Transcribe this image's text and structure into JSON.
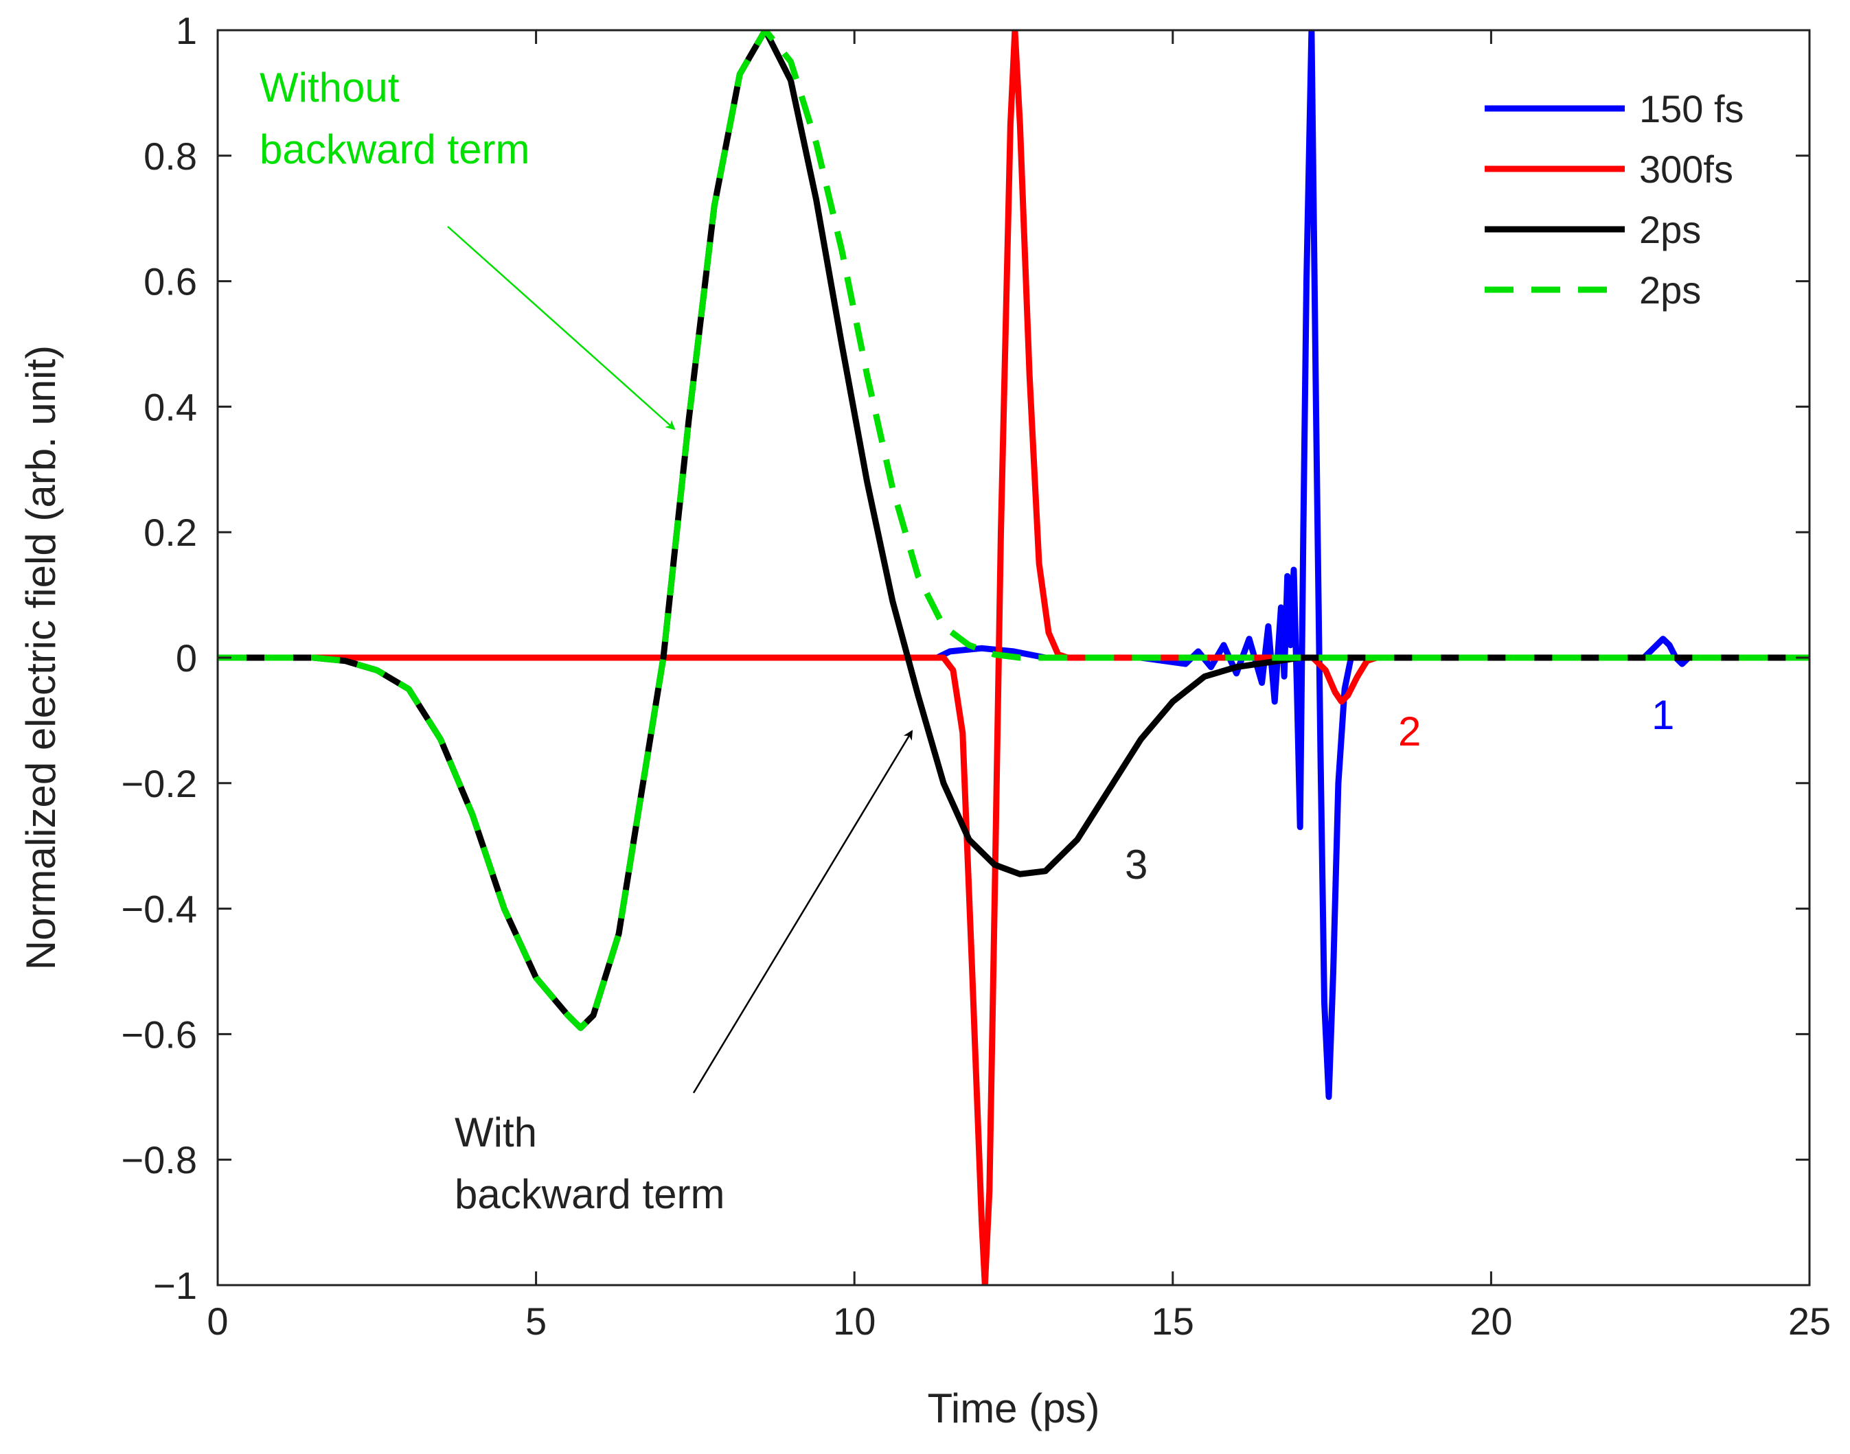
{
  "chart_data": {
    "type": "line",
    "title": "",
    "xlabel": "Time (ps)",
    "ylabel": "Normalized electric field (arb. unit)",
    "xlim": [
      0,
      25
    ],
    "ylim": [
      -1,
      1
    ],
    "xticks": [
      0,
      5,
      10,
      15,
      20,
      25
    ],
    "yticks": [
      -1,
      -0.8,
      -0.6,
      -0.4,
      -0.2,
      0,
      0.2,
      0.4,
      0.6,
      0.8,
      1
    ],
    "xtick_labels": [
      "0",
      "5",
      "10",
      "15",
      "20",
      "25"
    ],
    "ytick_labels": [
      "−1",
      "−0.8",
      "−0.6",
      "−0.4",
      "−0.2",
      "0",
      "0.2",
      "0.4",
      "0.6",
      "0.8",
      "1"
    ],
    "grid": false,
    "legend_position": "top-right",
    "series": [
      {
        "name": "150 fs",
        "color": "#0000ff",
        "style": "solid",
        "points": [
          [
            0,
            0
          ],
          [
            11.3,
            0
          ],
          [
            11.4,
            0.005
          ],
          [
            11.5,
            0.01
          ],
          [
            12,
            0.015
          ],
          [
            12.5,
            0.01
          ],
          [
            13,
            0.0
          ],
          [
            14.5,
            0
          ],
          [
            15.2,
            -0.01
          ],
          [
            15.4,
            0.01
          ],
          [
            15.6,
            -0.015
          ],
          [
            15.8,
            0.02
          ],
          [
            16.0,
            -0.025
          ],
          [
            16.2,
            0.03
          ],
          [
            16.4,
            -0.04
          ],
          [
            16.5,
            0.05
          ],
          [
            16.6,
            -0.07
          ],
          [
            16.7,
            0.08
          ],
          [
            16.75,
            -0.03
          ],
          [
            16.8,
            0.13
          ],
          [
            16.85,
            0.02
          ],
          [
            16.9,
            0.14
          ],
          [
            16.95,
            -0.05
          ],
          [
            17.0,
            -0.27
          ],
          [
            17.05,
            0.2
          ],
          [
            17.1,
            0.6
          ],
          [
            17.18,
            1.0
          ],
          [
            17.25,
            0.4
          ],
          [
            17.32,
            -0.15
          ],
          [
            17.38,
            -0.55
          ],
          [
            17.45,
            -0.7
          ],
          [
            17.52,
            -0.5
          ],
          [
            17.6,
            -0.2
          ],
          [
            17.7,
            -0.05
          ],
          [
            17.8,
            0.0
          ],
          [
            22.4,
            0
          ],
          [
            22.5,
            0.01
          ],
          [
            22.6,
            0.02
          ],
          [
            22.7,
            0.03
          ],
          [
            22.8,
            0.02
          ],
          [
            22.9,
            0.0
          ],
          [
            23.0,
            -0.01
          ],
          [
            23.1,
            0
          ],
          [
            25,
            0
          ]
        ]
      },
      {
        "name": "300fs",
        "color": "#ff0000",
        "style": "solid",
        "points": [
          [
            0,
            0
          ],
          [
            11.4,
            0
          ],
          [
            11.55,
            -0.02
          ],
          [
            11.7,
            -0.12
          ],
          [
            11.85,
            -0.5
          ],
          [
            12.0,
            -0.9
          ],
          [
            12.05,
            -1.0
          ],
          [
            12.12,
            -0.85
          ],
          [
            12.2,
            -0.4
          ],
          [
            12.3,
            0.2
          ],
          [
            12.45,
            0.85
          ],
          [
            12.52,
            1.0
          ],
          [
            12.6,
            0.85
          ],
          [
            12.75,
            0.45
          ],
          [
            12.9,
            0.15
          ],
          [
            13.05,
            0.04
          ],
          [
            13.2,
            0.005
          ],
          [
            13.35,
            0
          ],
          [
            17.2,
            0
          ],
          [
            17.4,
            -0.02
          ],
          [
            17.55,
            -0.055
          ],
          [
            17.65,
            -0.07
          ],
          [
            17.75,
            -0.06
          ],
          [
            17.9,
            -0.03
          ],
          [
            18.05,
            -0.005
          ],
          [
            18.2,
            0
          ],
          [
            25,
            0
          ]
        ]
      },
      {
        "name": "2ps",
        "color": "#000000",
        "style": "solid",
        "points": [
          [
            0,
            0
          ],
          [
            1.5,
            0
          ],
          [
            2,
            -0.005
          ],
          [
            2.5,
            -0.02
          ],
          [
            3,
            -0.05
          ],
          [
            3.5,
            -0.13
          ],
          [
            4,
            -0.25
          ],
          [
            4.5,
            -0.4
          ],
          [
            5,
            -0.51
          ],
          [
            5.5,
            -0.57
          ],
          [
            5.7,
            -0.59
          ],
          [
            5.9,
            -0.57
          ],
          [
            6.3,
            -0.44
          ],
          [
            6.6,
            -0.25
          ],
          [
            7.0,
            0.0
          ],
          [
            7.4,
            0.38
          ],
          [
            7.8,
            0.72
          ],
          [
            8.2,
            0.93
          ],
          [
            8.6,
            1.0
          ],
          [
            9.0,
            0.92
          ],
          [
            9.4,
            0.73
          ],
          [
            9.8,
            0.5
          ],
          [
            10.2,
            0.28
          ],
          [
            10.6,
            0.09
          ],
          [
            11.0,
            -0.06
          ],
          [
            11.4,
            -0.2
          ],
          [
            11.8,
            -0.29
          ],
          [
            12.2,
            -0.33
          ],
          [
            12.6,
            -0.345
          ],
          [
            13.0,
            -0.34
          ],
          [
            13.5,
            -0.29
          ],
          [
            14.0,
            -0.21
          ],
          [
            14.5,
            -0.13
          ],
          [
            15.0,
            -0.07
          ],
          [
            15.5,
            -0.03
          ],
          [
            16.0,
            -0.015
          ],
          [
            17.0,
            0
          ],
          [
            25,
            0
          ]
        ]
      },
      {
        "name": "2ps",
        "color": "#00e000",
        "style": "dashed",
        "points": [
          [
            0,
            0
          ],
          [
            1.5,
            0
          ],
          [
            2,
            -0.005
          ],
          [
            2.5,
            -0.02
          ],
          [
            3,
            -0.05
          ],
          [
            3.5,
            -0.13
          ],
          [
            4,
            -0.25
          ],
          [
            4.5,
            -0.4
          ],
          [
            5,
            -0.51
          ],
          [
            5.5,
            -0.57
          ],
          [
            5.7,
            -0.59
          ],
          [
            5.9,
            -0.57
          ],
          [
            6.3,
            -0.44
          ],
          [
            6.6,
            -0.25
          ],
          [
            7.0,
            0.0
          ],
          [
            7.4,
            0.38
          ],
          [
            7.8,
            0.72
          ],
          [
            8.2,
            0.93
          ],
          [
            8.6,
            1.0
          ],
          [
            9.0,
            0.95
          ],
          [
            9.4,
            0.82
          ],
          [
            9.8,
            0.65
          ],
          [
            10.2,
            0.45
          ],
          [
            10.6,
            0.27
          ],
          [
            11.0,
            0.13
          ],
          [
            11.4,
            0.05
          ],
          [
            11.8,
            0.02
          ],
          [
            12.2,
            0.005
          ],
          [
            12.6,
            0
          ],
          [
            25,
            0
          ]
        ]
      }
    ],
    "annotations": {
      "without_line1": "Without",
      "without_line2": "backward term",
      "with_line1": "With",
      "with_line2": "backward term",
      "label_1": "1",
      "label_2": "2",
      "label_3": "3"
    }
  }
}
